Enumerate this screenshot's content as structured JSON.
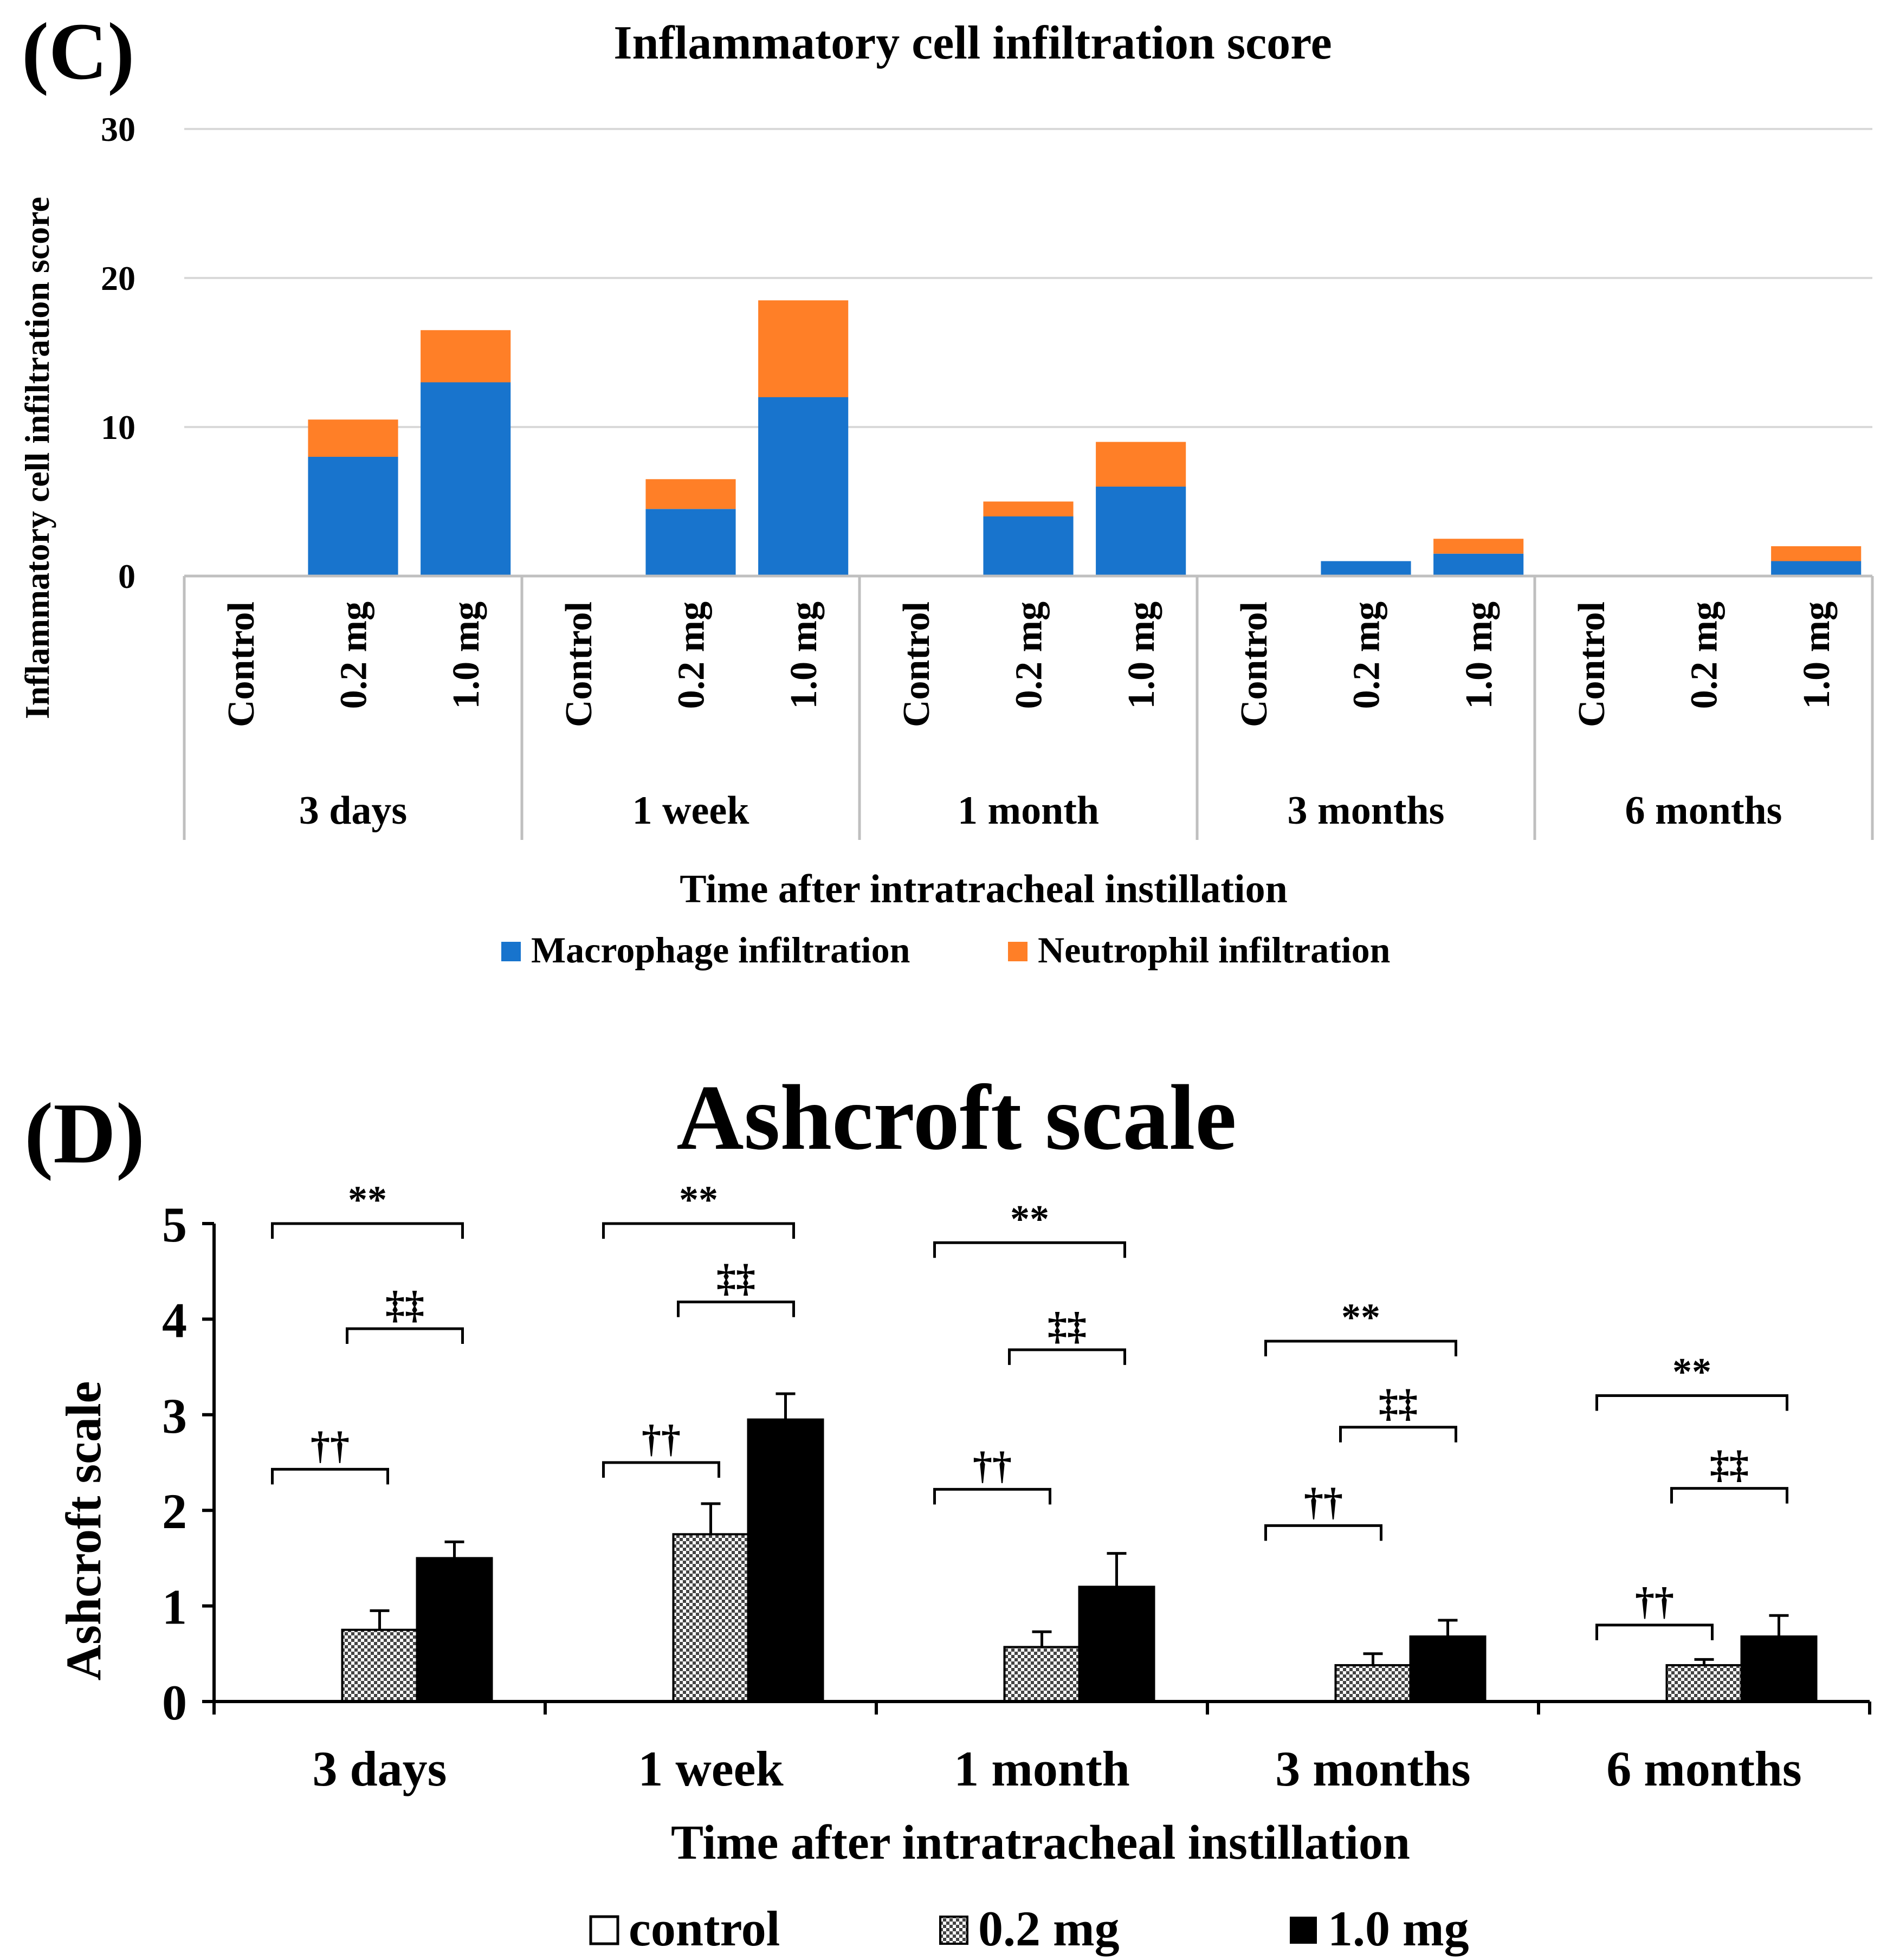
{
  "chart_data": [
    {
      "panel_label": "(C)",
      "type": "bar",
      "stacked": true,
      "title": "Inflammatory cell infiltration score",
      "ylabel": "Inflammatory cell infiltration score",
      "xlabel": "Time after intratracheal instillation",
      "ylim": [
        0,
        30
      ],
      "yticks": [
        "0",
        "10",
        "20",
        "30"
      ],
      "grid": true,
      "legend_position": "bottom",
      "groups": [
        "3 days",
        "1 week",
        "1 month",
        "3 months",
        "6 months"
      ],
      "categories": [
        "Control",
        "0.2 mg",
        "1.0 mg"
      ],
      "series": [
        {
          "name": "Macrophage infiltration",
          "color": "#1874CD",
          "values": [
            [
              0,
              8,
              13
            ],
            [
              0,
              4.5,
              12
            ],
            [
              0,
              4,
              6
            ],
            [
              0,
              1,
              1.5
            ],
            [
              0,
              0,
              1
            ]
          ]
        },
        {
          "name": "Neutrophil infiltration",
          "color": "#FF7F27",
          "values": [
            [
              0,
              2.5,
              3.5
            ],
            [
              0,
              2,
              6.5
            ],
            [
              0,
              1,
              3
            ],
            [
              0,
              0,
              1
            ],
            [
              0,
              0,
              1
            ]
          ]
        }
      ]
    },
    {
      "panel_label": "(D)",
      "type": "bar",
      "title": "Ashcroft scale",
      "ylabel": "Ashcroft scale",
      "xlabel": "Time after intratracheal instillation",
      "ylim": [
        0,
        5
      ],
      "yticks": [
        "0",
        "1",
        "2",
        "3",
        "4",
        "5"
      ],
      "grid": false,
      "legend_position": "bottom",
      "categories": [
        "3 days",
        "1 week",
        "1 month",
        "3 months",
        "6 months"
      ],
      "series": [
        {
          "name": "control",
          "pattern": "white",
          "values": [
            0,
            0,
            0,
            0,
            0
          ],
          "errors": [
            0,
            0,
            0,
            0,
            0
          ]
        },
        {
          "name": "0.2 mg",
          "pattern": "checkered",
          "values": [
            0.75,
            1.75,
            0.57,
            0.38,
            0.38
          ],
          "errors": [
            0.2,
            0.32,
            0.16,
            0.12,
            0.06
          ]
        },
        {
          "name": "1.0 mg",
          "pattern": "black",
          "values": [
            1.5,
            2.95,
            1.2,
            0.68,
            0.68
          ],
          "errors": [
            0.17,
            0.27,
            0.35,
            0.17,
            0.22
          ]
        }
      ],
      "significance": [
        {
          "group": "3 days",
          "pairs": [
            {
              "between": [
                "control",
                "1.0 mg"
              ],
              "level": 5.0,
              "symbol": "**"
            },
            {
              "between": [
                "0.2 mg",
                "1.0 mg"
              ],
              "level": 3.9,
              "symbol": "‡‡"
            },
            {
              "between": [
                "control",
                "0.2 mg"
              ],
              "level": 2.43,
              "symbol": "††"
            }
          ]
        },
        {
          "group": "1 week",
          "pairs": [
            {
              "between": [
                "control",
                "1.0 mg"
              ],
              "level": 5.0,
              "symbol": "**"
            },
            {
              "between": [
                "0.2 mg",
                "1.0 mg"
              ],
              "level": 4.18,
              "symbol": "‡‡"
            },
            {
              "between": [
                "control",
                "0.2 mg"
              ],
              "level": 2.5,
              "symbol": "††"
            }
          ]
        },
        {
          "group": "1 month",
          "pairs": [
            {
              "between": [
                "control",
                "1.0 mg"
              ],
              "level": 4.8,
              "symbol": "**"
            },
            {
              "between": [
                "0.2 mg",
                "1.0 mg"
              ],
              "level": 3.68,
              "symbol": "‡‡"
            },
            {
              "between": [
                "control",
                "0.2 mg"
              ],
              "level": 2.22,
              "symbol": "††"
            }
          ]
        },
        {
          "group": "3 months",
          "pairs": [
            {
              "between": [
                "control",
                "1.0 mg"
              ],
              "level": 3.77,
              "symbol": "**"
            },
            {
              "between": [
                "0.2 mg",
                "1.0 mg"
              ],
              "level": 2.87,
              "symbol": "‡‡"
            },
            {
              "between": [
                "control",
                "0.2 mg"
              ],
              "level": 1.84,
              "symbol": "††"
            }
          ]
        },
        {
          "group": "6 months",
          "pairs": [
            {
              "between": [
                "control",
                "1.0 mg"
              ],
              "level": 3.2,
              "symbol": "**"
            },
            {
              "between": [
                "0.2 mg",
                "1.0 mg"
              ],
              "level": 2.23,
              "symbol": "‡‡"
            },
            {
              "between": [
                "control",
                "0.2 mg"
              ],
              "level": 0.8,
              "symbol": "††"
            }
          ]
        }
      ]
    }
  ]
}
